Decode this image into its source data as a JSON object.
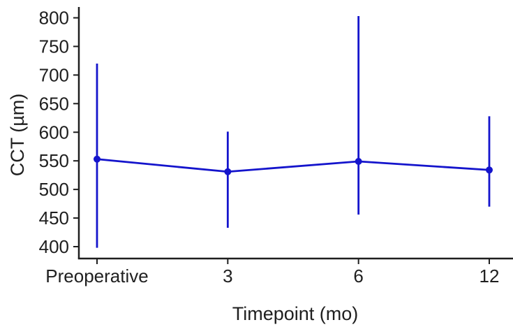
{
  "chart_data": {
    "type": "line",
    "title": "",
    "xlabel": "Timepoint (mo)",
    "ylabel": "CCT (µm)",
    "categories": [
      "Preoperative",
      "3",
      "6",
      "12"
    ],
    "series": [
      {
        "name": "CCT",
        "values": [
          553,
          531,
          549,
          534
        ],
        "error_low": [
          398,
          433,
          456,
          470
        ],
        "error_high": [
          720,
          601,
          803,
          628
        ]
      }
    ],
    "y_ticks": [
      400,
      450,
      500,
      550,
      600,
      650,
      700,
      750,
      800
    ],
    "ylim": [
      400,
      800
    ],
    "grid": false,
    "legend": false,
    "marker": "circle",
    "colors": {
      "series": "#1414cc",
      "axis": "#1f1f1f",
      "text": "#1f1f1f",
      "background": "#ffffff"
    }
  }
}
